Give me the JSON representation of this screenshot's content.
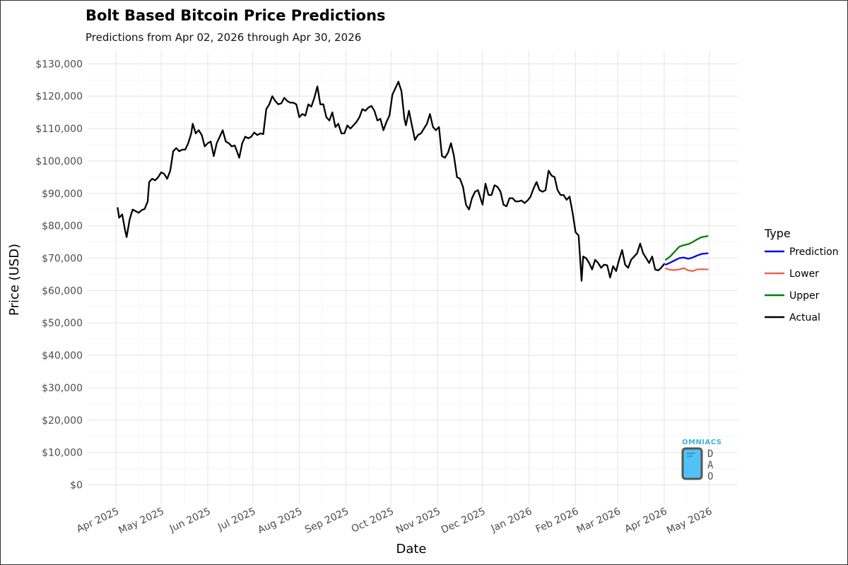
{
  "chart_data": {
    "type": "line",
    "title": "Bolt Based Bitcoin Price Predictions",
    "subtitle": "Predictions from Apr 02, 2026 through Apr 30, 2026",
    "xlabel": "Date",
    "ylabel": "Price (USD)",
    "ylim": [
      -6000,
      134000
    ],
    "y_ticks": [
      0,
      10000,
      20000,
      30000,
      40000,
      50000,
      60000,
      70000,
      80000,
      90000,
      100000,
      110000,
      120000,
      130000
    ],
    "y_tick_labels": [
      "$0",
      "$10,000",
      "$20,000",
      "$30,000",
      "$40,000",
      "$50,000",
      "$60,000",
      "$70,000",
      "$80,000",
      "$90,000",
      "$100,000",
      "$110,000",
      "$120,000",
      "$130,000"
    ],
    "x_ticks": [
      "2025-04-01",
      "2025-05-01",
      "2025-06-01",
      "2025-07-01",
      "2025-08-01",
      "2025-09-01",
      "2025-10-01",
      "2025-11-01",
      "2025-12-01",
      "2026-01-01",
      "2026-02-01",
      "2026-03-01",
      "2026-04-01",
      "2026-05-01"
    ],
    "x_tick_labels": [
      "Apr 2025",
      "May 2025",
      "Jun 2025",
      "Jul 2025",
      "Aug 2025",
      "Sep 2025",
      "Oct 2025",
      "Nov 2025",
      "Dec 2025",
      "Jan 2026",
      "Feb 2026",
      "Mar 2026",
      "Apr 2026",
      "May 2026"
    ],
    "xlim": [
      "2025-03-13",
      "2026-05-20"
    ],
    "legend": {
      "title": "Type",
      "position": "right",
      "entries": [
        {
          "name": "Prediction",
          "color": "#0000ee"
        },
        {
          "name": "Lower",
          "color": "#f0624a"
        },
        {
          "name": "Upper",
          "color": "#008000"
        },
        {
          "name": "Actual",
          "color": "#000000"
        }
      ]
    },
    "series": [
      {
        "name": "Actual",
        "color": "#000000",
        "points": [
          [
            "2025-04-02",
            85500
          ],
          [
            "2025-04-03",
            82500
          ],
          [
            "2025-04-05",
            83500
          ],
          [
            "2025-04-07",
            78500
          ],
          [
            "2025-04-08",
            76500
          ],
          [
            "2025-04-10",
            82000
          ],
          [
            "2025-04-12",
            85000
          ],
          [
            "2025-04-14",
            84500
          ],
          [
            "2025-04-16",
            84000
          ],
          [
            "2025-04-18",
            84800
          ],
          [
            "2025-04-20",
            85200
          ],
          [
            "2025-04-22",
            87500
          ],
          [
            "2025-04-23",
            93500
          ],
          [
            "2025-04-25",
            94500
          ],
          [
            "2025-04-27",
            94000
          ],
          [
            "2025-04-29",
            95000
          ],
          [
            "2025-05-01",
            96500
          ],
          [
            "2025-05-03",
            96000
          ],
          [
            "2025-05-05",
            94500
          ],
          [
            "2025-05-07",
            97000
          ],
          [
            "2025-05-09",
            103000
          ],
          [
            "2025-05-11",
            104000
          ],
          [
            "2025-05-13",
            103000
          ],
          [
            "2025-05-15",
            103500
          ],
          [
            "2025-05-17",
            103500
          ],
          [
            "2025-05-19",
            105500
          ],
          [
            "2025-05-21",
            108500
          ],
          [
            "2025-05-22",
            111500
          ],
          [
            "2025-05-24",
            108500
          ],
          [
            "2025-05-26",
            109500
          ],
          [
            "2025-05-28",
            108000
          ],
          [
            "2025-05-30",
            104500
          ],
          [
            "2025-06-01",
            105500
          ],
          [
            "2025-06-03",
            106000
          ],
          [
            "2025-06-05",
            101500
          ],
          [
            "2025-06-07",
            105500
          ],
          [
            "2025-06-09",
            107500
          ],
          [
            "2025-06-11",
            109500
          ],
          [
            "2025-06-13",
            106000
          ],
          [
            "2025-06-15",
            105500
          ],
          [
            "2025-06-17",
            104500
          ],
          [
            "2025-06-19",
            104800
          ],
          [
            "2025-06-22",
            101000
          ],
          [
            "2025-06-24",
            105500
          ],
          [
            "2025-06-26",
            107500
          ],
          [
            "2025-06-28",
            107000
          ],
          [
            "2025-06-30",
            107500
          ],
          [
            "2025-07-02",
            108800
          ],
          [
            "2025-07-04",
            108000
          ],
          [
            "2025-07-06",
            108500
          ],
          [
            "2025-07-08",
            108300
          ],
          [
            "2025-07-10",
            116000
          ],
          [
            "2025-07-12",
            117500
          ],
          [
            "2025-07-14",
            120000
          ],
          [
            "2025-07-16",
            118500
          ],
          [
            "2025-07-18",
            117500
          ],
          [
            "2025-07-20",
            117800
          ],
          [
            "2025-07-22",
            119500
          ],
          [
            "2025-07-24",
            118500
          ],
          [
            "2025-07-26",
            118000
          ],
          [
            "2025-07-28",
            118000
          ],
          [
            "2025-07-30",
            117500
          ],
          [
            "2025-08-01",
            113500
          ],
          [
            "2025-08-03",
            114500
          ],
          [
            "2025-08-05",
            114000
          ],
          [
            "2025-08-07",
            117500
          ],
          [
            "2025-08-09",
            116800
          ],
          [
            "2025-08-11",
            119500
          ],
          [
            "2025-08-13",
            123000
          ],
          [
            "2025-08-15",
            117500
          ],
          [
            "2025-08-17",
            117500
          ],
          [
            "2025-08-19",
            113500
          ],
          [
            "2025-08-21",
            112500
          ],
          [
            "2025-08-23",
            115000
          ],
          [
            "2025-08-25",
            110500
          ],
          [
            "2025-08-27",
            111500
          ],
          [
            "2025-08-29",
            108500
          ],
          [
            "2025-08-31",
            108500
          ],
          [
            "2025-09-02",
            111000
          ],
          [
            "2025-09-04",
            110000
          ],
          [
            "2025-09-06",
            111000
          ],
          [
            "2025-09-08",
            112000
          ],
          [
            "2025-09-10",
            113500
          ],
          [
            "2025-09-12",
            116000
          ],
          [
            "2025-09-14",
            115500
          ],
          [
            "2025-09-16",
            116500
          ],
          [
            "2025-09-18",
            117000
          ],
          [
            "2025-09-20",
            115500
          ],
          [
            "2025-09-22",
            112500
          ],
          [
            "2025-09-24",
            113000
          ],
          [
            "2025-09-26",
            109500
          ],
          [
            "2025-09-28",
            112000
          ],
          [
            "2025-09-30",
            114000
          ],
          [
            "2025-10-02",
            120500
          ],
          [
            "2025-10-04",
            122500
          ],
          [
            "2025-10-06",
            124500
          ],
          [
            "2025-10-08",
            121500
          ],
          [
            "2025-10-10",
            113000
          ],
          [
            "2025-10-11",
            111000
          ],
          [
            "2025-10-13",
            115500
          ],
          [
            "2025-10-15",
            111000
          ],
          [
            "2025-10-17",
            106500
          ],
          [
            "2025-10-19",
            108000
          ],
          [
            "2025-10-21",
            108500
          ],
          [
            "2025-10-23",
            110000
          ],
          [
            "2025-10-25",
            111500
          ],
          [
            "2025-10-27",
            114500
          ],
          [
            "2025-10-29",
            110500
          ],
          [
            "2025-10-31",
            109500
          ],
          [
            "2025-11-02",
            110500
          ],
          [
            "2025-11-04",
            101500
          ],
          [
            "2025-11-06",
            101000
          ],
          [
            "2025-11-08",
            102500
          ],
          [
            "2025-11-10",
            105500
          ],
          [
            "2025-11-12",
            101500
          ],
          [
            "2025-11-14",
            95000
          ],
          [
            "2025-11-16",
            94500
          ],
          [
            "2025-11-18",
            92000
          ],
          [
            "2025-11-20",
            86500
          ],
          [
            "2025-11-22",
            85000
          ],
          [
            "2025-11-24",
            88500
          ],
          [
            "2025-11-26",
            90500
          ],
          [
            "2025-11-28",
            91000
          ],
          [
            "2025-12-01",
            86500
          ],
          [
            "2025-12-03",
            93000
          ],
          [
            "2025-12-05",
            89500
          ],
          [
            "2025-12-07",
            89500
          ],
          [
            "2025-12-09",
            92500
          ],
          [
            "2025-12-11",
            92000
          ],
          [
            "2025-12-13",
            90500
          ],
          [
            "2025-12-15",
            86500
          ],
          [
            "2025-12-17",
            86000
          ],
          [
            "2025-12-19",
            88500
          ],
          [
            "2025-12-21",
            88500
          ],
          [
            "2025-12-23",
            87500
          ],
          [
            "2025-12-25",
            87500
          ],
          [
            "2025-12-27",
            87800
          ],
          [
            "2025-12-29",
            87000
          ],
          [
            "2025-12-31",
            87800
          ],
          [
            "2026-01-02",
            89000
          ],
          [
            "2026-01-04",
            91500
          ],
          [
            "2026-01-06",
            93500
          ],
          [
            "2026-01-08",
            91000
          ],
          [
            "2026-01-10",
            90500
          ],
          [
            "2026-01-12",
            91000
          ],
          [
            "2026-01-14",
            97000
          ],
          [
            "2026-01-16",
            95500
          ],
          [
            "2026-01-18",
            95000
          ],
          [
            "2026-01-20",
            91000
          ],
          [
            "2026-01-22",
            89500
          ],
          [
            "2026-01-24",
            89500
          ],
          [
            "2026-01-26",
            88000
          ],
          [
            "2026-01-28",
            89000
          ],
          [
            "2026-01-30",
            84000
          ],
          [
            "2026-02-01",
            78000
          ],
          [
            "2026-02-03",
            77000
          ],
          [
            "2026-02-05",
            63000
          ],
          [
            "2026-02-06",
            70500
          ],
          [
            "2026-02-08",
            70000
          ],
          [
            "2026-02-10",
            68500
          ],
          [
            "2026-02-12",
            66500
          ],
          [
            "2026-02-14",
            69500
          ],
          [
            "2026-02-16",
            68500
          ],
          [
            "2026-02-18",
            67000
          ],
          [
            "2026-02-20",
            68000
          ],
          [
            "2026-02-22",
            67800
          ],
          [
            "2026-02-24",
            64000
          ],
          [
            "2026-02-26",
            67500
          ],
          [
            "2026-02-28",
            66000
          ],
          [
            "2026-03-02",
            69500
          ],
          [
            "2026-03-04",
            72500
          ],
          [
            "2026-03-06",
            68000
          ],
          [
            "2026-03-08",
            67000
          ],
          [
            "2026-03-10",
            69500
          ],
          [
            "2026-03-12",
            70500
          ],
          [
            "2026-03-14",
            71500
          ],
          [
            "2026-03-16",
            74500
          ],
          [
            "2026-03-18",
            71500
          ],
          [
            "2026-03-20",
            70000
          ],
          [
            "2026-03-22",
            68500
          ],
          [
            "2026-03-24",
            70500
          ],
          [
            "2026-03-26",
            66500
          ],
          [
            "2026-03-28",
            66200
          ],
          [
            "2026-03-30",
            67000
          ],
          [
            "2026-04-01",
            68200
          ]
        ]
      },
      {
        "name": "Upper",
        "color": "#008000",
        "points": [
          [
            "2026-04-02",
            69500
          ],
          [
            "2026-04-05",
            70500
          ],
          [
            "2026-04-08",
            72000
          ],
          [
            "2026-04-11",
            73500
          ],
          [
            "2026-04-14",
            74000
          ],
          [
            "2026-04-17",
            74300
          ],
          [
            "2026-04-20",
            75000
          ],
          [
            "2026-04-23",
            75800
          ],
          [
            "2026-04-26",
            76500
          ],
          [
            "2026-04-30",
            76800
          ]
        ]
      },
      {
        "name": "Prediction",
        "color": "#0000ee",
        "points": [
          [
            "2026-04-02",
            68000
          ],
          [
            "2026-04-05",
            68600
          ],
          [
            "2026-04-08",
            69300
          ],
          [
            "2026-04-11",
            70000
          ],
          [
            "2026-04-14",
            70200
          ],
          [
            "2026-04-17",
            69800
          ],
          [
            "2026-04-20",
            70200
          ],
          [
            "2026-04-23",
            70800
          ],
          [
            "2026-04-26",
            71300
          ],
          [
            "2026-04-30",
            71500
          ]
        ]
      },
      {
        "name": "Lower",
        "color": "#f0624a",
        "points": [
          [
            "2026-04-02",
            66800
          ],
          [
            "2026-04-05",
            66400
          ],
          [
            "2026-04-08",
            66300
          ],
          [
            "2026-04-11",
            66500
          ],
          [
            "2026-04-14",
            66900
          ],
          [
            "2026-04-17",
            66200
          ],
          [
            "2026-04-20",
            66000
          ],
          [
            "2026-04-23",
            66500
          ],
          [
            "2026-04-26",
            66600
          ],
          [
            "2026-04-30",
            66500
          ]
        ]
      }
    ]
  },
  "logo": {
    "wordmark": "OMNIACS",
    "suffix": "DAO"
  }
}
